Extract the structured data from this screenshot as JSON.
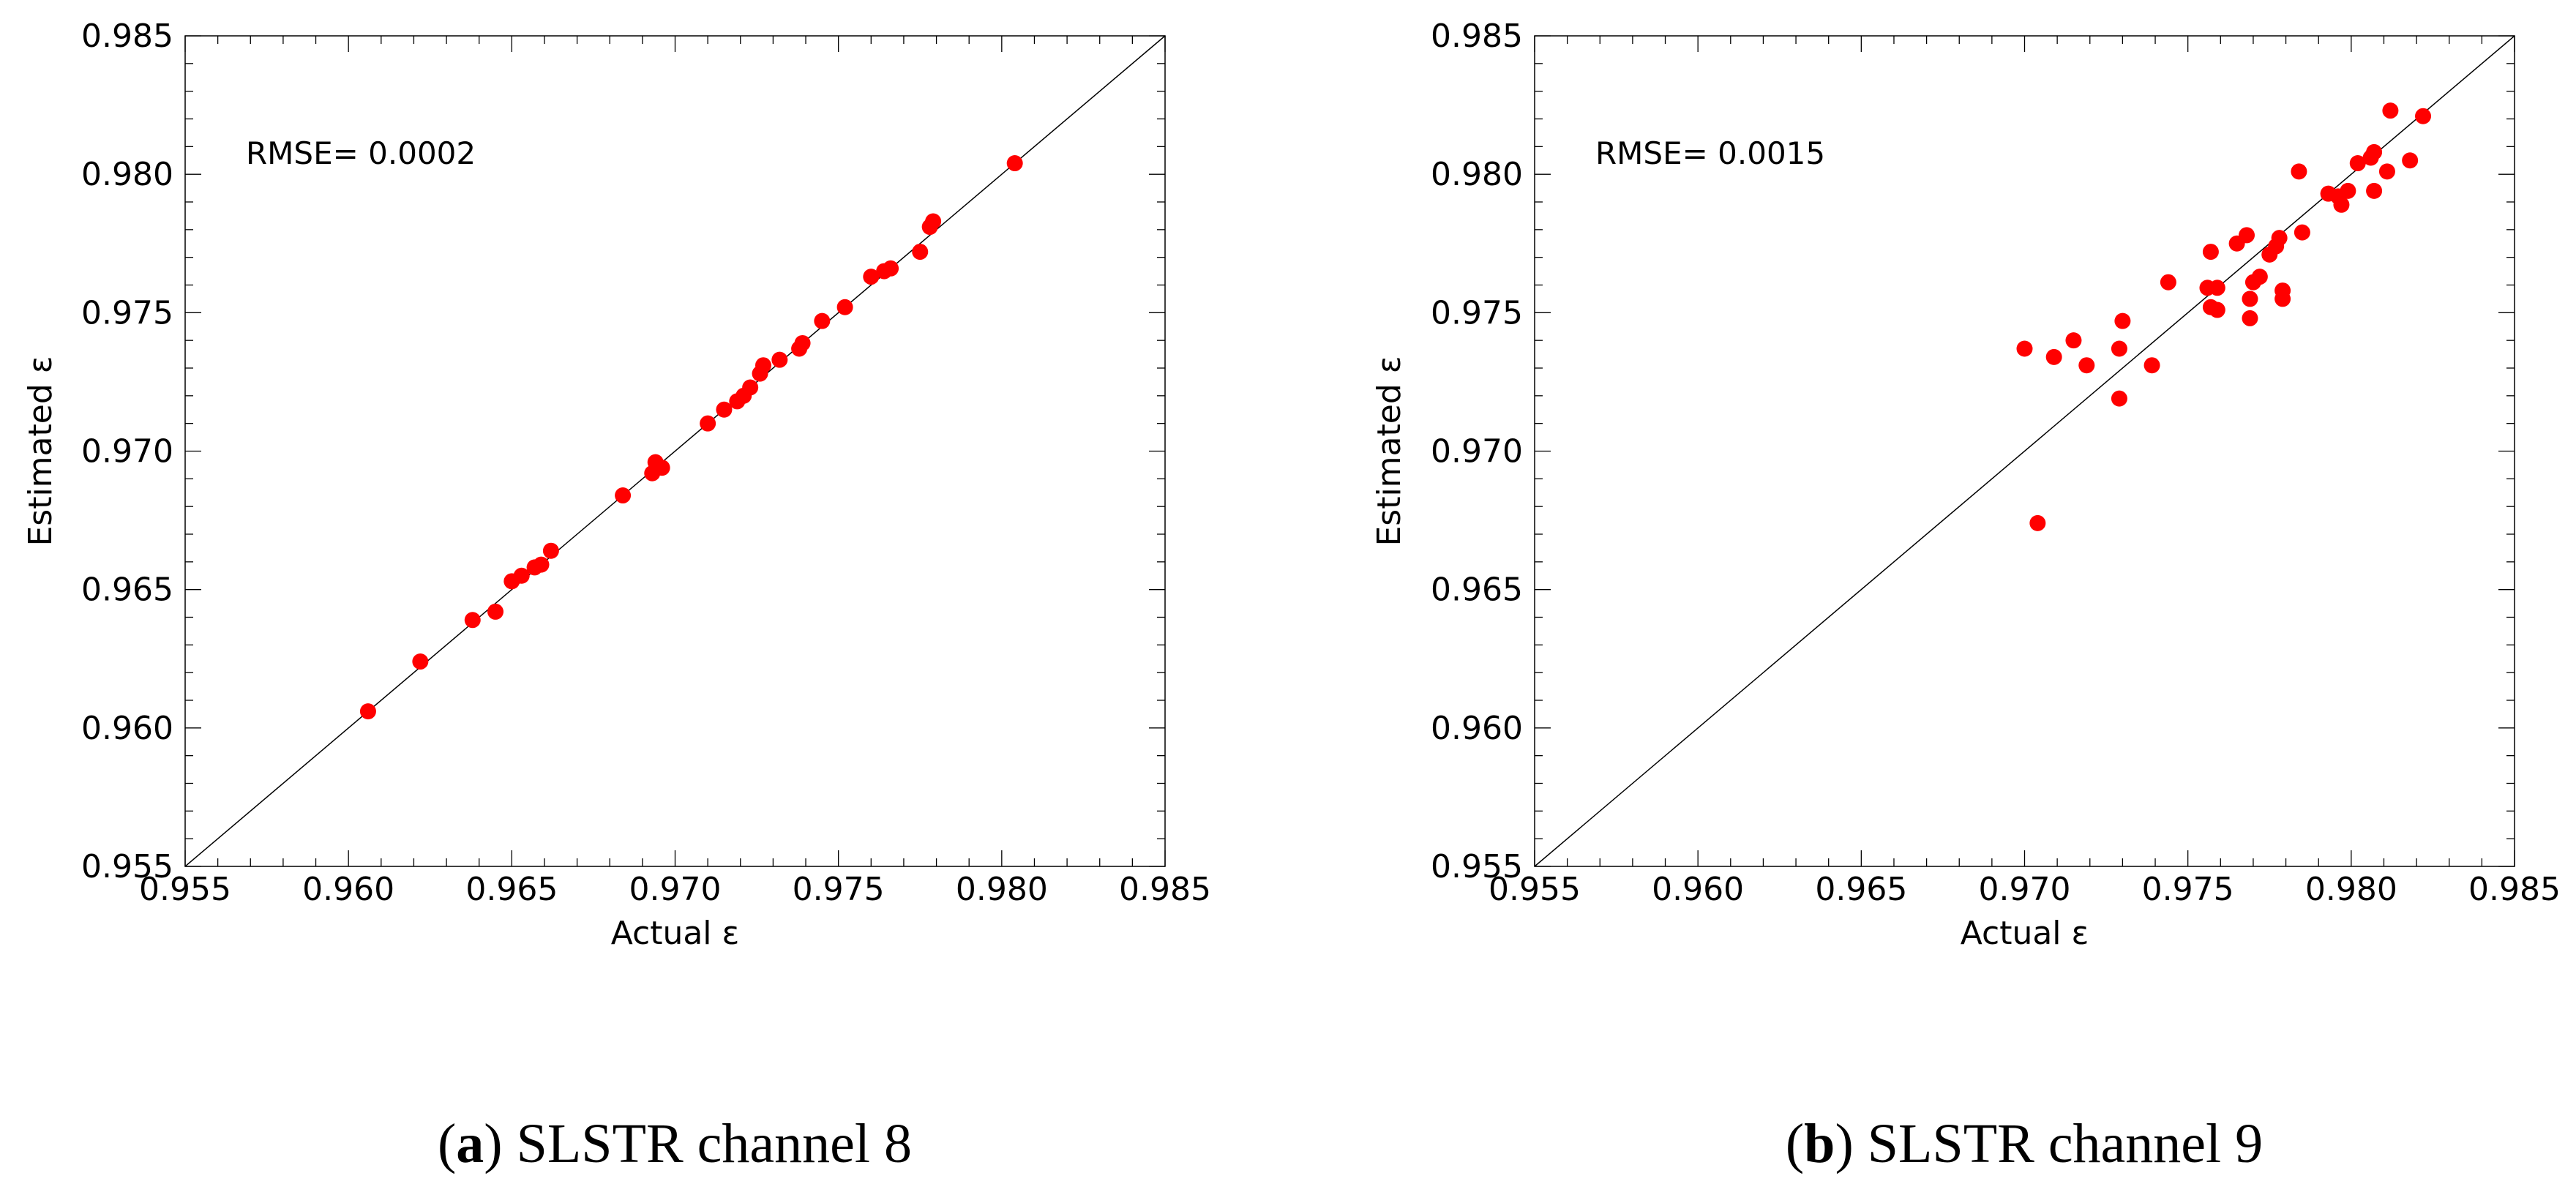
{
  "chart_data": [
    {
      "type": "scatter",
      "panel_label": "a",
      "caption": "SLSTR channel 8",
      "xlabel": "Actual ε",
      "ylabel": "Estimated ε",
      "annotation": "RMSE= 0.0002",
      "xlim": [
        0.955,
        0.985
      ],
      "ylim": [
        0.955,
        0.985
      ],
      "xticks": [
        "0.955",
        "0.960",
        "0.965",
        "0.970",
        "0.975",
        "0.980",
        "0.985"
      ],
      "yticks": [
        "0.955",
        "0.960",
        "0.965",
        "0.970",
        "0.975",
        "0.980",
        "0.985"
      ],
      "reference_line": "1:1",
      "marker_color": "#ff0000",
      "points": [
        [
          0.9606,
          0.9606
        ],
        [
          0.9622,
          0.9624
        ],
        [
          0.9638,
          0.9639
        ],
        [
          0.9645,
          0.9642
        ],
        [
          0.965,
          0.9653
        ],
        [
          0.9653,
          0.9655
        ],
        [
          0.9657,
          0.9658
        ],
        [
          0.9659,
          0.9659
        ],
        [
          0.9662,
          0.9664
        ],
        [
          0.9684,
          0.9684
        ],
        [
          0.9693,
          0.9692
        ],
        [
          0.9694,
          0.9696
        ],
        [
          0.9696,
          0.9694
        ],
        [
          0.971,
          0.971
        ],
        [
          0.9715,
          0.9715
        ],
        [
          0.9719,
          0.9718
        ],
        [
          0.9721,
          0.972
        ],
        [
          0.9723,
          0.9723
        ],
        [
          0.9726,
          0.9728
        ],
        [
          0.9727,
          0.9731
        ],
        [
          0.9732,
          0.9733
        ],
        [
          0.9738,
          0.9737
        ],
        [
          0.9739,
          0.9739
        ],
        [
          0.9745,
          0.9747
        ],
        [
          0.9752,
          0.9752
        ],
        [
          0.976,
          0.9763
        ],
        [
          0.9764,
          0.9765
        ],
        [
          0.9766,
          0.9766
        ],
        [
          0.9775,
          0.9772
        ],
        [
          0.9778,
          0.9781
        ],
        [
          0.9779,
          0.9783
        ],
        [
          0.9804,
          0.9804
        ]
      ]
    },
    {
      "type": "scatter",
      "panel_label": "b",
      "caption": "SLSTR channel 9",
      "xlabel": "Actual ε",
      "ylabel": "Estimated ε",
      "annotation": "RMSE= 0.0015",
      "xlim": [
        0.955,
        0.985
      ],
      "ylim": [
        0.955,
        0.985
      ],
      "xticks": [
        "0.955",
        "0.960",
        "0.965",
        "0.970",
        "0.975",
        "0.980",
        "0.985"
      ],
      "yticks": [
        "0.955",
        "0.960",
        "0.965",
        "0.970",
        "0.975",
        "0.980",
        "0.985"
      ],
      "reference_line": "1:1",
      "marker_color": "#ff0000",
      "points": [
        [
          0.97,
          0.9737
        ],
        [
          0.9704,
          0.9674
        ],
        [
          0.9709,
          0.9734
        ],
        [
          0.9715,
          0.974
        ],
        [
          0.9719,
          0.9731
        ],
        [
          0.9729,
          0.9719
        ],
        [
          0.9729,
          0.9737
        ],
        [
          0.973,
          0.9747
        ],
        [
          0.9739,
          0.9731
        ],
        [
          0.9744,
          0.9761
        ],
        [
          0.9756,
          0.9759
        ],
        [
          0.9757,
          0.9752
        ],
        [
          0.9757,
          0.9772
        ],
        [
          0.9759,
          0.9751
        ],
        [
          0.9759,
          0.9759
        ],
        [
          0.9765,
          0.9775
        ],
        [
          0.9768,
          0.9778
        ],
        [
          0.9769,
          0.9748
        ],
        [
          0.9769,
          0.9755
        ],
        [
          0.977,
          0.9761
        ],
        [
          0.9772,
          0.9763
        ],
        [
          0.9775,
          0.9771
        ],
        [
          0.9777,
          0.9774
        ],
        [
          0.9778,
          0.9777
        ],
        [
          0.9779,
          0.9755
        ],
        [
          0.9779,
          0.9758
        ],
        [
          0.9784,
          0.9801
        ],
        [
          0.9785,
          0.9779
        ],
        [
          0.9793,
          0.9793
        ],
        [
          0.9796,
          0.9792
        ],
        [
          0.9797,
          0.9789
        ],
        [
          0.9799,
          0.9794
        ],
        [
          0.9802,
          0.9804
        ],
        [
          0.9806,
          0.9806
        ],
        [
          0.9807,
          0.9794
        ],
        [
          0.9807,
          0.9808
        ],
        [
          0.9811,
          0.9801
        ],
        [
          0.9812,
          0.9823
        ],
        [
          0.9818,
          0.9805
        ],
        [
          0.9822,
          0.9821
        ]
      ]
    }
  ]
}
